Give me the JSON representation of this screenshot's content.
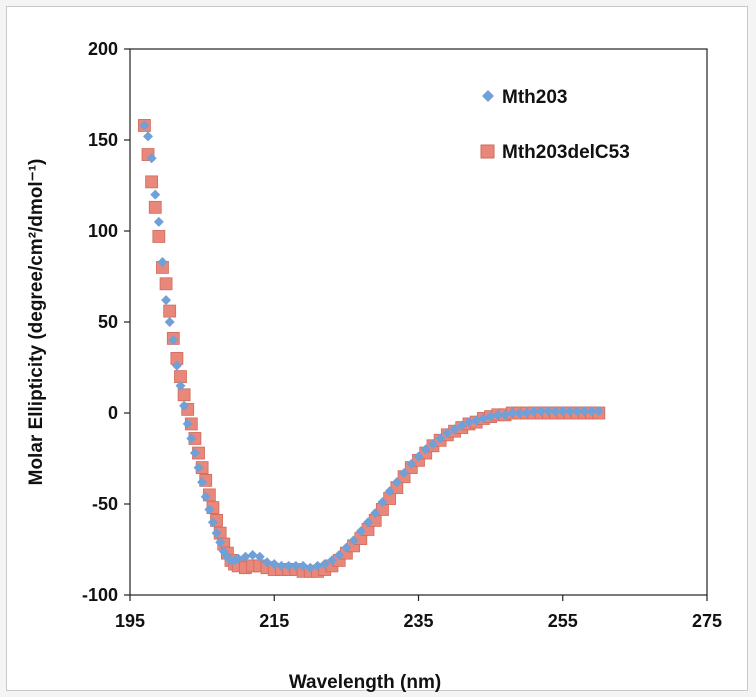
{
  "chart_data": {
    "type": "scatter",
    "title": "",
    "xlabel": "Wavelength (nm)",
    "ylabel": "Molar Ellipticity (degree/cm²/dmol⁻¹)",
    "xlim": [
      195,
      275
    ],
    "ylim": [
      -100,
      200
    ],
    "xticks": [
      "195",
      "215",
      "235",
      "255",
      "275"
    ],
    "yticks": [
      "200",
      "150",
      "100",
      "50",
      "0",
      "-50",
      "-100"
    ],
    "grid": false,
    "legend_position": "top-right",
    "series": [
      {
        "name": "Mth203",
        "marker": "diamond",
        "color": "#6fa0d8",
        "x": [
          197,
          197.5,
          198,
          198.5,
          199,
          199.5,
          200,
          200.5,
          201,
          201.5,
          202,
          202.5,
          203,
          203.5,
          204,
          204.5,
          205,
          205.5,
          206,
          206.5,
          207,
          207.5,
          208,
          208.5,
          209,
          209.5,
          210,
          211,
          212,
          213,
          214,
          215,
          216,
          217,
          218,
          219,
          220,
          221,
          222,
          223,
          224,
          225,
          226,
          227,
          228,
          229,
          230,
          231,
          232,
          233,
          234,
          235,
          236,
          237,
          238,
          239,
          240,
          241,
          242,
          243,
          244,
          245,
          246,
          247,
          248,
          249,
          250,
          251,
          252,
          253,
          254,
          255,
          256,
          257,
          258,
          259,
          260
        ],
        "y": [
          158,
          152,
          140,
          120,
          105,
          83,
          62,
          50,
          40,
          26,
          15,
          4,
          -6,
          -14,
          -22,
          -30,
          -38,
          -46,
          -53,
          -60,
          -66,
          -71,
          -76,
          -79,
          -81,
          -81,
          -80,
          -79,
          -78,
          -79,
          -82,
          -83,
          -84,
          -84,
          -84,
          -84,
          -85,
          -84,
          -83,
          -81,
          -78,
          -74,
          -70,
          -65,
          -60,
          -55,
          -49,
          -43,
          -38,
          -33,
          -28,
          -24,
          -20,
          -17,
          -14,
          -11,
          -9,
          -7,
          -5,
          -4,
          -3,
          -2,
          -1,
          -1,
          0,
          0,
          0,
          1,
          1,
          1,
          1,
          1,
          1,
          1,
          1,
          1,
          1
        ]
      },
      {
        "name": "Mth203delC53",
        "marker": "square",
        "color": "#e8877a",
        "x": [
          197,
          197.5,
          198,
          198.5,
          199,
          199.5,
          200,
          200.5,
          201,
          201.5,
          202,
          202.5,
          203,
          203.5,
          204,
          204.5,
          205,
          205.5,
          206,
          206.5,
          207,
          207.5,
          208,
          208.5,
          209,
          209.5,
          210,
          211,
          212,
          213,
          214,
          215,
          216,
          217,
          218,
          219,
          220,
          221,
          222,
          223,
          224,
          225,
          226,
          227,
          228,
          229,
          230,
          231,
          232,
          233,
          234,
          235,
          236,
          237,
          238,
          239,
          240,
          241,
          242,
          243,
          244,
          245,
          246,
          247,
          248,
          249,
          250,
          251,
          252,
          253,
          254,
          255,
          256,
          257,
          258,
          259,
          260
        ],
        "y": [
          158,
          142,
          127,
          113,
          97,
          80,
          71,
          56,
          41,
          30,
          20,
          10,
          2,
          -6,
          -14,
          -22,
          -30,
          -37,
          -45,
          -52,
          -59,
          -66,
          -72,
          -77,
          -81,
          -83,
          -84,
          -85,
          -84,
          -84,
          -85,
          -86,
          -86,
          -86,
          -86,
          -87,
          -87,
          -87,
          -86,
          -84,
          -81,
          -77,
          -73,
          -69,
          -64,
          -59,
          -53,
          -47,
          -41,
          -35,
          -30,
          -26,
          -22,
          -18,
          -15,
          -12,
          -10,
          -8,
          -6,
          -5,
          -3,
          -2,
          -1,
          -1,
          0,
          0,
          0,
          0,
          0,
          0,
          0,
          0,
          0,
          0,
          0,
          0,
          0
        ]
      }
    ]
  }
}
